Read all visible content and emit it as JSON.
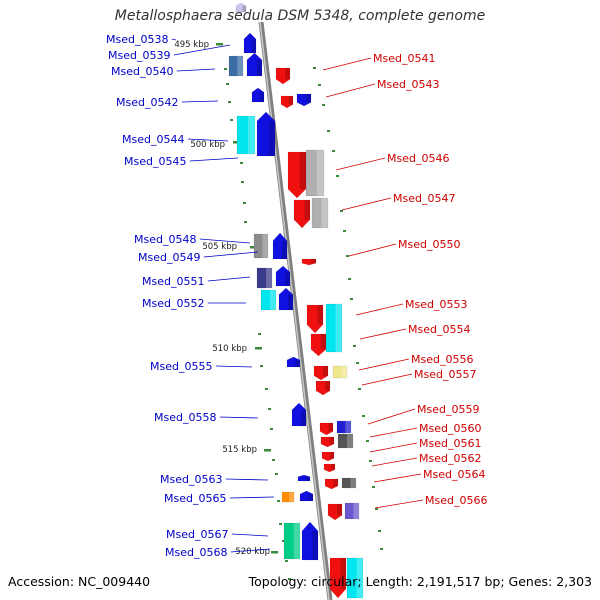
{
  "title": "Metallosphaera sedula DSM 5348, complete genome",
  "footer": {
    "accession": "Accession: NC_009440",
    "topology": "Topology: circular; Length: 2,191,517 bp; Genes: 2,303"
  },
  "colors": {
    "forward_gene": "#1010e0",
    "reverse_gene": "#f01010",
    "left_label": "#0000c8",
    "right_label": "#d00000",
    "backbone": "#9a9a9a",
    "tick": "#3a8a3a"
  },
  "kbp_labels": [
    "495 kbp",
    "500 kbp",
    "505 kbp",
    "510 kbp",
    "515 kbp",
    "520 kbp"
  ],
  "left_genes": [
    "Msed_0538",
    "Msed_0539",
    "Msed_0540",
    "Msed_0542",
    "Msed_0544",
    "Msed_0545",
    "Msed_0548",
    "Msed_0549",
    "Msed_0551",
    "Msed_0552",
    "Msed_0555",
    "Msed_0558",
    "Msed_0563",
    "Msed_0565",
    "Msed_0567",
    "Msed_0568"
  ],
  "right_genes": [
    "Msed_0541",
    "Msed_0543",
    "Msed_0546",
    "Msed_0547",
    "Msed_0550",
    "Msed_0553",
    "Msed_0554",
    "Msed_0556",
    "Msed_0557",
    "Msed_0559",
    "Msed_0560",
    "Msed_0561",
    "Msed_0562",
    "Msed_0564",
    "Msed_0566"
  ]
}
